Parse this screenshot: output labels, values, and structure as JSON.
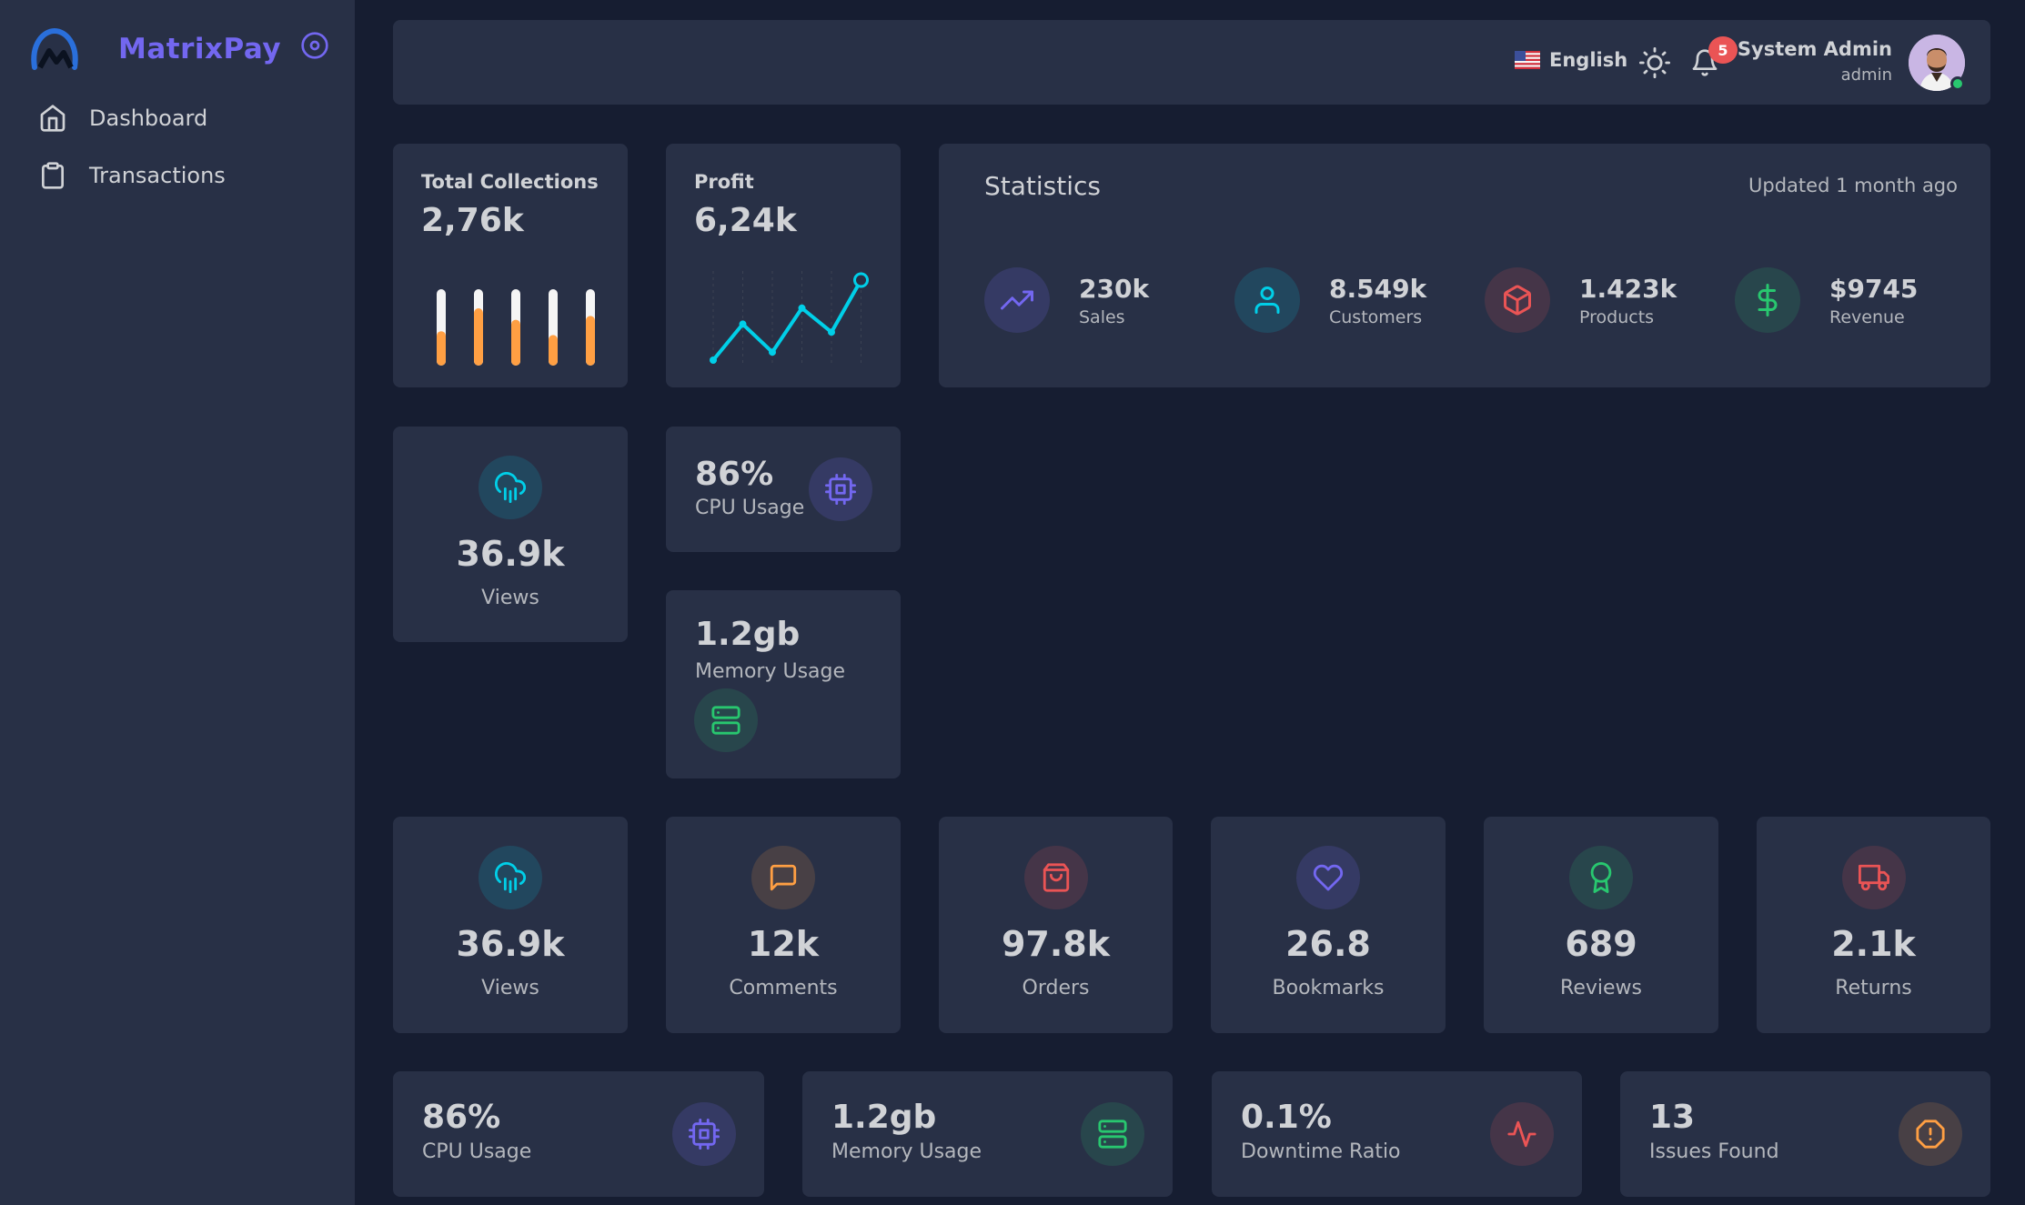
{
  "brand": {
    "name": "MatrixPay"
  },
  "sidebar": {
    "items": [
      {
        "label": "Dashboard",
        "icon": "home-icon"
      },
      {
        "label": "Transactions",
        "icon": "clipboard-icon"
      }
    ]
  },
  "navbar": {
    "language": "English",
    "notifications_count": "5",
    "user_name": "System Admin",
    "user_role": "admin"
  },
  "total_collections": {
    "label": "Total Collections",
    "value": "2,76k",
    "bar_levels": [
      0.45,
      0.75,
      0.6,
      0.4,
      0.65
    ]
  },
  "profit": {
    "label": "Profit",
    "value": "6,24k",
    "line_points": [
      0,
      0.45,
      0.1,
      0.65,
      0.35,
      1.0
    ]
  },
  "statistics": {
    "title": "Statistics",
    "updated": "Updated 1 month ago",
    "items": [
      {
        "value": "230k",
        "label": "Sales",
        "icon": "trending-up-icon"
      },
      {
        "value": "8.549k",
        "label": "Customers",
        "icon": "user-icon"
      },
      {
        "value": "1.423k",
        "label": "Products",
        "icon": "box-icon"
      },
      {
        "value": "$9745",
        "label": "Revenue",
        "icon": "dollar-icon"
      }
    ]
  },
  "views_card": {
    "value": "36.9k",
    "label": "Views"
  },
  "cpu_small": {
    "value": "86%",
    "label": "CPU Usage"
  },
  "memory_small": {
    "value": "1.2gb",
    "label": "Memory Usage"
  },
  "metrics": [
    {
      "value": "36.9k",
      "label": "Views",
      "icon": "cloud-rain-icon"
    },
    {
      "value": "12k",
      "label": "Comments",
      "icon": "message-square-icon"
    },
    {
      "value": "97.8k",
      "label": "Orders",
      "icon": "shopping-bag-icon"
    },
    {
      "value": "26.8",
      "label": "Bookmarks",
      "icon": "heart-icon"
    },
    {
      "value": "689",
      "label": "Reviews",
      "icon": "award-icon"
    },
    {
      "value": "2.1k",
      "label": "Returns",
      "icon": "truck-icon"
    }
  ],
  "system": [
    {
      "value": "86%",
      "label": "CPU Usage",
      "icon": "cpu-icon"
    },
    {
      "value": "1.2gb",
      "label": "Memory Usage",
      "icon": "server-icon"
    },
    {
      "value": "0.1%",
      "label": "Downtime Ratio",
      "icon": "activity-icon"
    },
    {
      "value": "13",
      "label": "Issues Found",
      "icon": "alert-octagon-icon"
    }
  ],
  "colors": {
    "primary": "#7367f0",
    "info": "#00cfe8",
    "success": "#28c76f",
    "danger": "#ea5455",
    "warning": "#ff9f43",
    "bg": "#161d31",
    "card": "#283046"
  }
}
